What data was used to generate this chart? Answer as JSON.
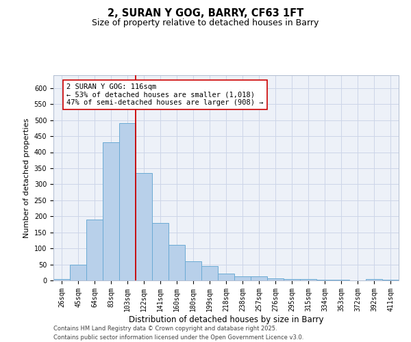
{
  "title1": "2, SURAN Y GOG, BARRY, CF63 1FT",
  "title2": "Size of property relative to detached houses in Barry",
  "xlabel": "Distribution of detached houses by size in Barry",
  "ylabel": "Number of detached properties",
  "bar_labels": [
    "26sqm",
    "45sqm",
    "64sqm",
    "83sqm",
    "103sqm",
    "122sqm",
    "141sqm",
    "160sqm",
    "180sqm",
    "199sqm",
    "218sqm",
    "238sqm",
    "257sqm",
    "276sqm",
    "295sqm",
    "315sqm",
    "334sqm",
    "353sqm",
    "372sqm",
    "392sqm",
    "411sqm"
  ],
  "bar_values": [
    5,
    50,
    190,
    430,
    490,
    335,
    180,
    110,
    60,
    45,
    22,
    12,
    12,
    7,
    4,
    4,
    2,
    2,
    1,
    5,
    2
  ],
  "bar_color": "#b8d0ea",
  "bar_edge_color": "#6aaad4",
  "vline_index": 4.5,
  "vline_color": "#cc0000",
  "annotation_text": "2 SURAN Y GOG: 116sqm\n← 53% of detached houses are smaller (1,018)\n47% of semi-detached houses are larger (908) →",
  "annotation_box_color": "#ffffff",
  "annotation_box_edge": "#cc0000",
  "ylim": [
    0,
    640
  ],
  "yticks": [
    0,
    50,
    100,
    150,
    200,
    250,
    300,
    350,
    400,
    450,
    500,
    550,
    600
  ],
  "grid_color": "#ccd5e8",
  "background_color": "#edf1f8",
  "footer_text": "Contains HM Land Registry data © Crown copyright and database right 2025.\nContains public sector information licensed under the Open Government Licence v3.0.",
  "title1_fontsize": 10.5,
  "title2_fontsize": 9,
  "xlabel_fontsize": 8.5,
  "ylabel_fontsize": 8,
  "tick_fontsize": 7,
  "annotation_fontsize": 7.5,
  "footer_fontsize": 6
}
